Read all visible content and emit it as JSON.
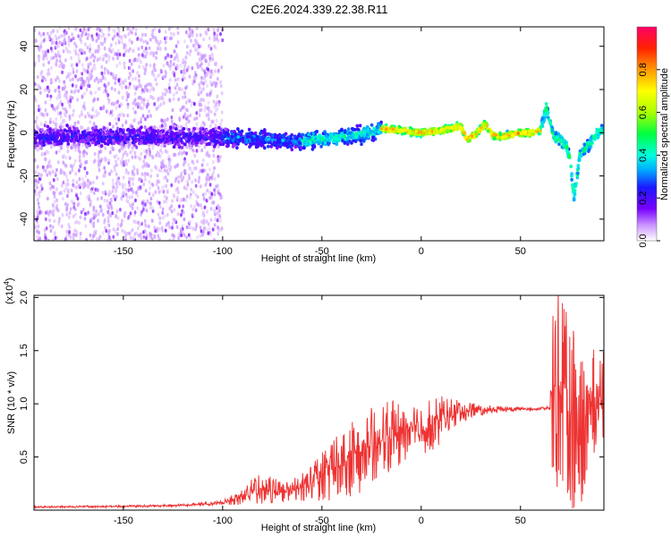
{
  "title": "C2E6.2024.339.22.38.R11",
  "chart_data": [
    {
      "type": "heatmap",
      "xlabel": "Height of straight line (km)",
      "ylabel": "Frequency (Hz)",
      "xlim": [
        -195,
        92
      ],
      "ylim": [
        -50,
        49
      ],
      "xticks": [
        -150,
        -100,
        -50,
        0,
        50
      ],
      "yticks": [
        -40,
        -20,
        0,
        20,
        40
      ],
      "colorbar": {
        "label": "Normalized spectral amplitude",
        "range": [
          0,
          1
        ],
        "ticks": [
          0.0,
          0.2,
          0.4,
          0.6,
          0.8
        ]
      },
      "ridge": {
        "x": [
          -195,
          -150,
          -100,
          -80,
          -60,
          -40,
          -25,
          -20,
          -10,
          0,
          10,
          15,
          20,
          23,
          27,
          32,
          36,
          40,
          45,
          50,
          55,
          60,
          63,
          65,
          67,
          70,
          73,
          75,
          77,
          80,
          85,
          90
        ],
        "frequency": [
          -2,
          -2,
          -2,
          -3,
          -4,
          -2,
          0,
          2,
          1,
          0,
          1,
          2,
          3,
          -3,
          -1,
          4,
          -1,
          -2,
          -1,
          0,
          0,
          1,
          12,
          4,
          -2,
          -3,
          -6,
          -12,
          -30,
          -10,
          -5,
          1
        ]
      }
    },
    {
      "type": "line",
      "xlabel": "Height of straight line (km)",
      "ylabel": "SNR (10 * v/v)",
      "scale_label": "(x10",
      "scale_exponent": "4",
      "scale_close": ")",
      "xlim": [
        -195,
        92
      ],
      "ylim": [
        0,
        20200
      ],
      "xticks": [
        -150,
        -100,
        -50,
        0,
        50
      ],
      "yticks": [
        5000,
        10000,
        15000,
        20000
      ],
      "ytick_labels": [
        "0.5",
        "1.0",
        "1.5",
        "2.0"
      ],
      "color": "#ee3333",
      "series": [
        {
          "x": [
            -195,
            -150,
            -120,
            -100,
            -90,
            -80,
            -70,
            -60,
            -50,
            -40,
            -30,
            -20,
            -10,
            0,
            10,
            20,
            30,
            40,
            50,
            55,
            60,
            65,
            66,
            70,
            75,
            80,
            85,
            92
          ],
          "values": [
            300,
            350,
            450,
            700,
            1300,
            2200,
            1600,
            2100,
            3200,
            4500,
            5500,
            6500,
            7300,
            7500,
            8500,
            9300,
            9400,
            9500,
            9500,
            9500,
            9550,
            9600,
            12000,
            11000,
            9000,
            8000,
            9500,
            10000
          ],
          "spread": [
            50,
            60,
            80,
            120,
            500,
            1000,
            600,
            900,
            1500,
            2300,
            2400,
            2200,
            2000,
            1700,
            1400,
            700,
            300,
            200,
            120,
            100,
            100,
            120,
            6000,
            6000,
            5500,
            5000,
            3500,
            3500
          ]
        }
      ]
    }
  ]
}
